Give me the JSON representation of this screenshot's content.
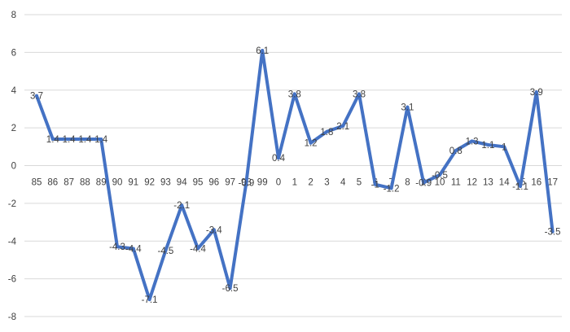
{
  "chart_data": {
    "type": "line",
    "title": "",
    "xlabel": "",
    "ylabel": "",
    "categories": [
      "85",
      "86",
      "87",
      "88",
      "89",
      "90",
      "91",
      "92",
      "93",
      "94",
      "95",
      "96",
      "97",
      "98",
      "99",
      "0",
      "1",
      "2",
      "3",
      "4",
      "5",
      "6",
      "7",
      "8",
      "9",
      "10",
      "11",
      "12",
      "13",
      "14",
      "15",
      "16",
      "17"
    ],
    "y_ticks": [
      "8",
      "6",
      "4",
      "2",
      "0",
      "-2",
      "-4",
      "-6",
      "-8"
    ],
    "ylim": [
      -8,
      8
    ],
    "grid": "horizontal",
    "legend": "none",
    "series": [
      {
        "color": "#4472c4",
        "values": [
          3.7,
          1.4,
          1.4,
          1.4,
          1.4,
          -4.3,
          -4.4,
          -7.1,
          -4.5,
          -2.1,
          -4.4,
          -3.4,
          -6.5,
          -0.9,
          6.1,
          0.4,
          3.8,
          1.2,
          1.8,
          2.1,
          3.8,
          -1,
          -1.2,
          3.1,
          -0.9,
          -0.5,
          0.8,
          1.3,
          1.1,
          1,
          -1.1,
          3.9,
          -3.5
        ],
        "data_labels": [
          "3.7",
          "1.4",
          "1.4",
          "1.4",
          "1.4",
          "-4.3",
          "-4.4",
          "-7.1",
          "-4.5",
          "-2.1",
          "-4.4",
          "-3.4",
          "-6.5",
          "-0.9",
          "6.1",
          "0.4",
          "3.8",
          "1.2",
          "1.8",
          "2.1",
          "3.8",
          "-1",
          "-1.2",
          "3.1",
          "-0.9",
          "-0.5",
          "0.8",
          "1.3",
          "1.1",
          "1",
          "-1.1",
          "3.9",
          "-3.5"
        ]
      }
    ]
  }
}
